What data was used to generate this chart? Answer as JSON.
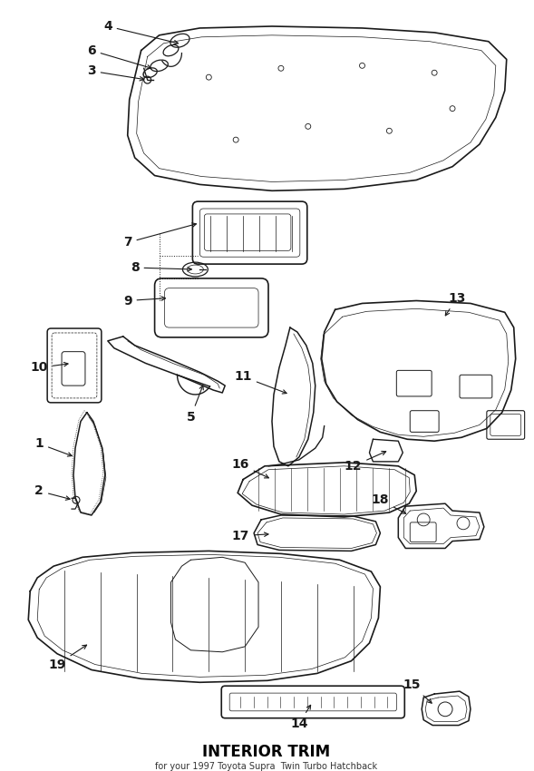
{
  "title": "INTERIOR TRIM",
  "subtitle": "for your 1997 Toyota Supra  Twin Turbo Hatchback",
  "bg_color": "#ffffff",
  "line_color": "#1a1a1a",
  "label_color": "#000000",
  "fig_w": 5.89,
  "fig_h": 8.5,
  "dpi": 100
}
